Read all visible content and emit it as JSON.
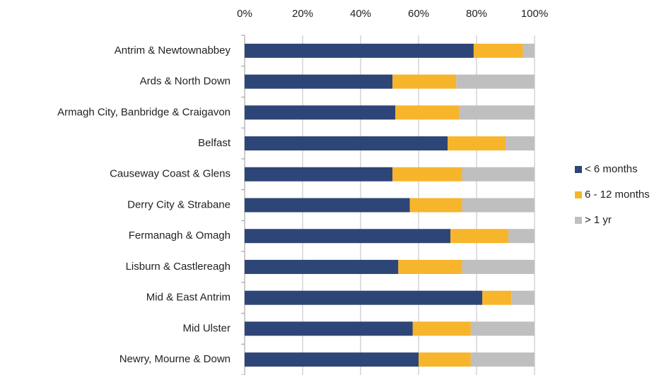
{
  "chart_data": {
    "type": "bar",
    "orientation": "horizontal",
    "stacked": true,
    "categories": [
      "Antrim & Newtownabbey",
      "Ards & North Down",
      "Armagh City, Banbridge & Craigavon",
      "Belfast",
      "Causeway Coast & Glens",
      "Derry City & Strabane",
      "Fermanagh & Omagh",
      "Lisburn & Castlereagh",
      "Mid & East Antrim",
      "Mid Ulster",
      "Newry, Mourne & Down"
    ],
    "series": [
      {
        "name": "< 6 months",
        "color": "#2e4577",
        "values": [
          79,
          51,
          52,
          70,
          51,
          57,
          71,
          53,
          82,
          58,
          60
        ]
      },
      {
        "name": "6 - 12 months",
        "color": "#f7b52c",
        "values": [
          17,
          22,
          22,
          20,
          24,
          18,
          20,
          22,
          10,
          20,
          18
        ]
      },
      {
        "name": "> 1 yr",
        "color": "#bfbfbf",
        "values": [
          4,
          27,
          26,
          10,
          25,
          25,
          9,
          25,
          8,
          22,
          22
        ]
      }
    ],
    "xlim": [
      0,
      100
    ],
    "xticks": [
      {
        "value": 0,
        "label": "0%"
      },
      {
        "value": 20,
        "label": "20%"
      },
      {
        "value": 40,
        "label": "40%"
      },
      {
        "value": 60,
        "label": "60%"
      },
      {
        "value": 80,
        "label": "80%"
      },
      {
        "value": 100,
        "label": "100%"
      }
    ],
    "grid": true,
    "legend": "right"
  }
}
